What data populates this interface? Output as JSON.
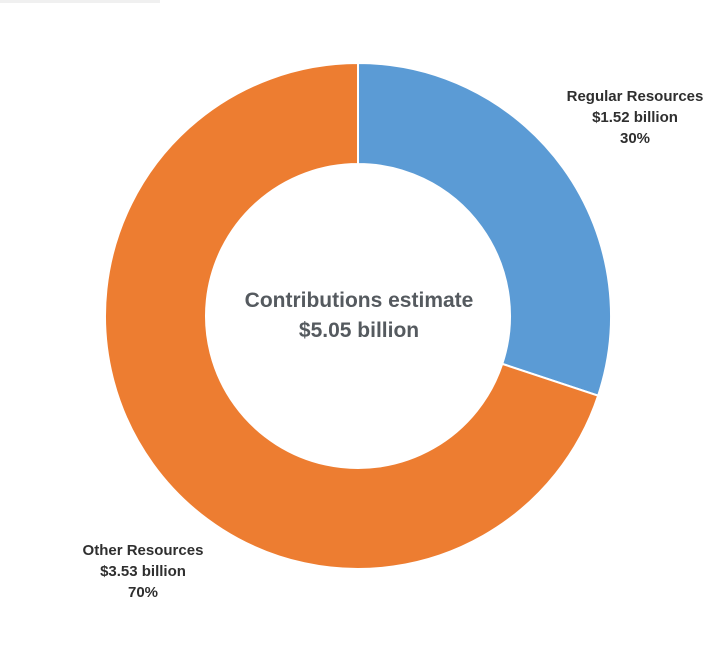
{
  "chart_data": {
    "type": "pie",
    "donut": true,
    "center_label": {
      "line1": "Contributions estimate",
      "line2": "$5.05 billion"
    },
    "slices": [
      {
        "name": "Regular Resources",
        "amount_label": "$1.52 billion",
        "percent_label": "30%",
        "value": 1.52,
        "color": "#5b9bd5"
      },
      {
        "name": "Other Resources",
        "amount_label": "$3.53 billion",
        "percent_label": "70%",
        "value": 3.53,
        "color": "#ed7d31"
      }
    ],
    "legend": "none"
  }
}
